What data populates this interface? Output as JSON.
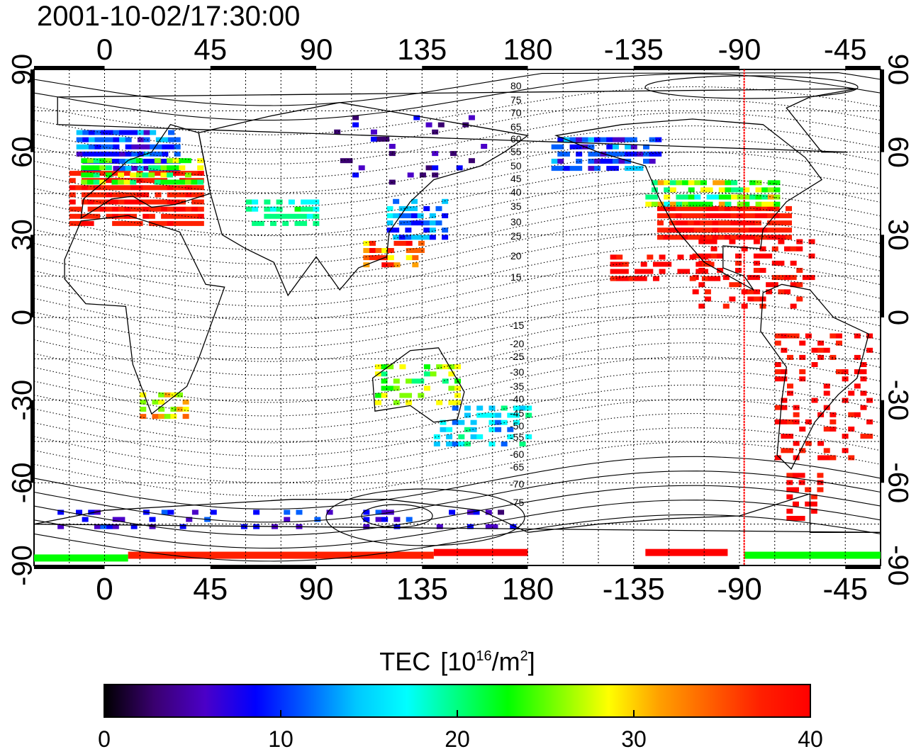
{
  "title": "2001-10-02/17:30:00",
  "x_tick_labels": [
    "0",
    "45",
    "90",
    "135",
    "180",
    "-135",
    "-90",
    "-45"
  ],
  "y_tick_labels": [
    "90",
    "60",
    "30",
    "0",
    "-30",
    "-60",
    "-90"
  ],
  "mlat_labels_north": [
    "80",
    "75",
    "70",
    "65",
    "60",
    "55",
    "50",
    "45",
    "40",
    "35",
    "30",
    "25",
    "20",
    "15"
  ],
  "mlat_labels_south": [
    "-15",
    "-20",
    "-25",
    "-30",
    "-35",
    "-40",
    "-45",
    "-50",
    "-55",
    "-60",
    "-65",
    "-70",
    "-75"
  ],
  "colorbar": {
    "label_text": "TEC",
    "label_unit_open": "[10",
    "label_unit_exp": "16",
    "label_unit_mid": "/m",
    "label_unit_exp2": "2",
    "label_unit_close": "]",
    "min": 0,
    "max": 40,
    "tick_labels": [
      "0",
      "10",
      "20",
      "30",
      "40"
    ],
    "colors": [
      "#000000",
      "#3a0070",
      "#4b00c8",
      "#0000ff",
      "#0060ff",
      "#00c8ff",
      "#00ffff",
      "#00ff80",
      "#00ff00",
      "#80ff00",
      "#ffff00",
      "#ffa000",
      "#ff6000",
      "#ff2000",
      "#ff0000"
    ]
  },
  "terminator_longitude": -88,
  "colors": {
    "terminator": "#ff0000",
    "grid": "#000000",
    "coast": "#000000"
  }
}
